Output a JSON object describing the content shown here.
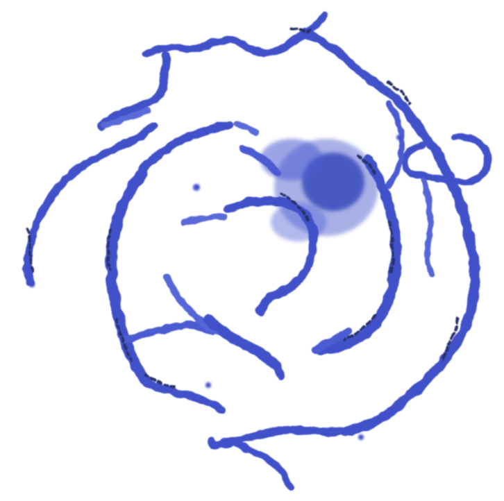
{
  "image": {
    "subject": "spiral-brush-stroke-artwork",
    "colors": {
      "background": "#ffffff",
      "stroke_main": "#3f51c9",
      "stroke_light": "#6f7fe0",
      "stroke_dark": "#1f2e8f",
      "stroke_edge": "#25306a"
    }
  }
}
